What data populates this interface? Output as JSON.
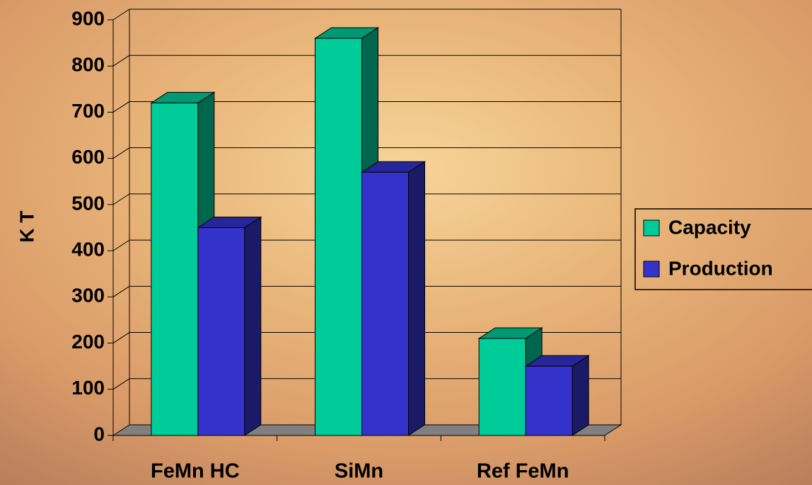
{
  "chart_data": {
    "type": "bar3d",
    "categories": [
      "FeMn HC",
      "SiMn",
      "Ref FeMn"
    ],
    "series": [
      {
        "name": "Capacity",
        "color": "#00cc99",
        "values": [
          720,
          860,
          210
        ]
      },
      {
        "name": "Production",
        "color": "#3333cc",
        "values": [
          450,
          570,
          150
        ]
      }
    ],
    "y_label": "K T",
    "ylim": [
      0,
      900
    ],
    "yticks": [
      0,
      100,
      200,
      300,
      400,
      500,
      600,
      700,
      800,
      900
    ],
    "grid": true,
    "legend": "right"
  }
}
